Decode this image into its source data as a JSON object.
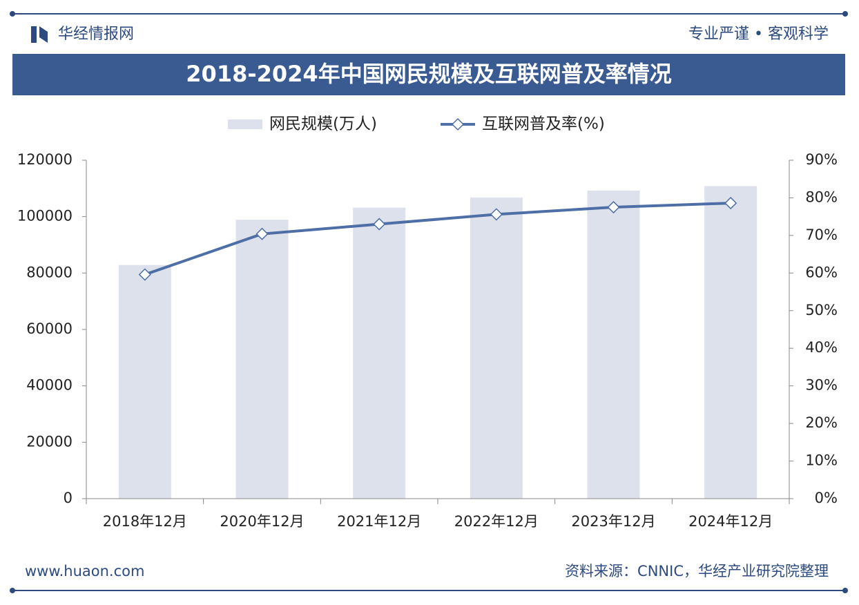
{
  "header": {
    "brand": "华经情报网",
    "slogan": "专业严谨 • 客观科学"
  },
  "footer": {
    "website": "www.huaon.com",
    "source": "资料来源：CNNIC，华经产业研究院整理"
  },
  "chart_data": {
    "type": "bar",
    "title": "2018-2024年中国网民规模及互联网普及率情况",
    "categories": [
      "2018年12月",
      "2020年12月",
      "2021年12月",
      "2022年12月",
      "2023年12月",
      "2024年12月"
    ],
    "series": [
      {
        "name": "网民规模(万人)",
        "type": "bar",
        "color": "#dde1ec",
        "values": [
          82851,
          98899,
          103195,
          106744,
          109221,
          110826
        ]
      },
      {
        "name": "互联网普及率(%)",
        "type": "line",
        "axis": "y2",
        "color": "#4d6fa6",
        "values": [
          59.6,
          70.4,
          73.0,
          75.6,
          77.5,
          78.6
        ]
      }
    ],
    "ylim": [
      0,
      120000
    ],
    "yticks": [
      0,
      20000,
      40000,
      60000,
      80000,
      100000,
      120000
    ],
    "y2lim": [
      0,
      90
    ],
    "y2ticks": [
      {
        "value": 0,
        "label": "0%"
      },
      {
        "value": 10,
        "label": "10%"
      },
      {
        "value": 20,
        "label": "20%"
      },
      {
        "value": 30,
        "label": "30%"
      },
      {
        "value": 40,
        "label": "40%"
      },
      {
        "value": 50,
        "label": "50%"
      },
      {
        "value": 60,
        "label": "60%"
      },
      {
        "value": 70,
        "label": "70%"
      },
      {
        "value": 80,
        "label": "80%"
      },
      {
        "value": 90,
        "label": "90%"
      }
    ],
    "grid": false,
    "legend": "top"
  }
}
